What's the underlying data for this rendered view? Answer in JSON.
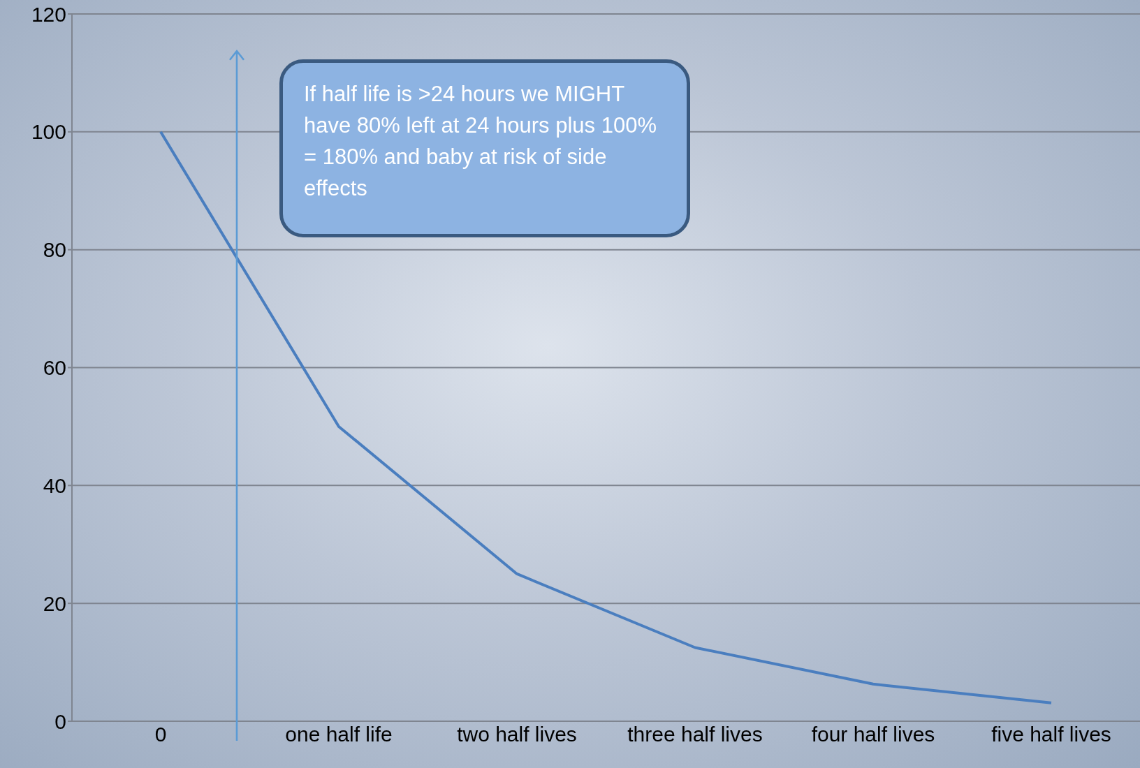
{
  "chart_data": {
    "type": "line",
    "categories": [
      "0",
      "one half life",
      "two half lives",
      "three half lives",
      "four half lives",
      "five half lives"
    ],
    "series": [
      {
        "color": "#4a7ebf",
        "values": [
          100,
          50,
          25,
          12.5,
          6.3,
          3.1
        ]
      }
    ],
    "ylim": [
      0,
      120
    ],
    "yticks": [
      0,
      20,
      40,
      60,
      80,
      100,
      120
    ],
    "grid": "y",
    "legend": false,
    "marker": "none",
    "annotations": [
      "If half life is >24 hours we MIGHT have 80% left at 24 hours plus 100% = 180% and baby at risk of side effects"
    ]
  }
}
